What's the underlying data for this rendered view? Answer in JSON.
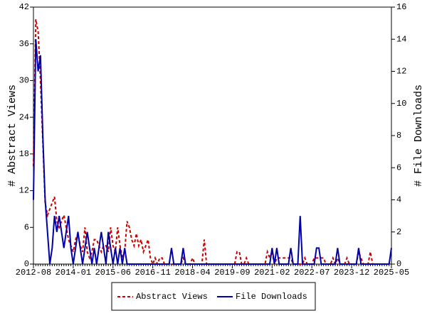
{
  "chart_data": {
    "type": "line",
    "categories": [
      "2012-08",
      null,
      null,
      null,
      null,
      null,
      null,
      null,
      null,
      null,
      null,
      null,
      null,
      null,
      null,
      null,
      null,
      "2014-01",
      null,
      null,
      null,
      null,
      null,
      null,
      null,
      null,
      null,
      null,
      null,
      null,
      null,
      null,
      null,
      null,
      "2015-06",
      null,
      null,
      null,
      null,
      null,
      null,
      null,
      null,
      null,
      null,
      null,
      null,
      null,
      null,
      null,
      null,
      "2016-11",
      null,
      null,
      null,
      null,
      null,
      null,
      null,
      null,
      null,
      null,
      null,
      null,
      null,
      null,
      null,
      null,
      "2018-04",
      null,
      null,
      null,
      null,
      null,
      null,
      null,
      null,
      null,
      null,
      null,
      null,
      null,
      null,
      null,
      null,
      "2019-09",
      null,
      null,
      null,
      null,
      null,
      null,
      null,
      null,
      null,
      null,
      null,
      null,
      null,
      null,
      null,
      null,
      "2021-02",
      null,
      null,
      null,
      null,
      null,
      null,
      null,
      null,
      null,
      null,
      null,
      null,
      null,
      null,
      null,
      null,
      "2022-07",
      null,
      null,
      null,
      null,
      null,
      null,
      null,
      null,
      null,
      null,
      null,
      null,
      null,
      null,
      null,
      null,
      "2023-12",
      null,
      null,
      null,
      null,
      null,
      null,
      null,
      null,
      null,
      null,
      null,
      null,
      null,
      null,
      null,
      null,
      "2025-05"
    ],
    "series": [
      {
        "name": "Abstract Views",
        "color": "#cc0000",
        "line_style": "dashed",
        "axis": "y",
        "values": [
          16,
          40,
          38,
          30,
          20,
          10,
          8,
          9,
          10,
          11,
          7,
          6,
          7,
          8,
          6,
          4,
          3,
          2,
          4,
          5,
          3,
          2,
          6,
          2,
          1,
          2,
          4,
          4,
          3,
          2,
          3,
          3,
          2,
          6,
          3,
          2,
          6,
          3,
          1,
          2,
          7,
          6,
          4,
          3,
          5,
          3,
          4,
          2,
          3,
          4,
          1,
          0,
          1,
          0,
          1,
          1,
          0,
          0,
          0,
          0,
          0,
          0,
          0,
          0,
          1,
          0,
          0,
          0,
          1,
          0,
          0,
          0,
          0,
          4,
          0,
          0,
          0,
          0,
          0,
          0,
          0,
          0,
          0,
          0,
          0,
          0,
          0,
          2,
          2,
          0,
          0,
          1,
          0,
          0,
          0,
          0,
          0,
          0,
          0,
          0,
          2,
          1,
          2,
          0,
          1,
          1,
          1,
          1,
          1,
          1,
          1,
          0,
          0,
          0,
          0,
          0,
          1,
          0,
          0,
          0,
          1,
          1,
          1,
          1,
          1,
          0,
          0,
          0,
          1,
          0,
          1,
          0,
          0,
          0,
          1,
          0,
          0,
          0,
          0,
          2,
          1,
          0,
          0,
          0,
          2,
          0,
          0,
          0,
          0,
          0,
          0,
          0,
          0,
          0
        ]
      },
      {
        "name": "File Downloads",
        "color": "#0000aa",
        "line_style": "solid",
        "axis": "y2",
        "values": [
          4,
          14,
          12,
          13,
          8,
          4,
          2,
          0,
          1,
          3,
          2,
          3,
          2,
          1,
          2,
          3,
          1,
          0,
          1,
          2,
          1,
          0,
          1,
          2,
          1,
          0,
          1,
          0,
          1,
          2,
          1,
          0,
          2,
          1,
          0,
          1,
          0,
          1,
          0,
          1,
          0,
          0,
          0,
          0,
          0,
          0,
          0,
          0,
          0,
          0,
          0,
          0,
          0,
          0,
          0,
          0,
          0,
          0,
          0,
          1,
          0,
          0,
          0,
          0,
          1,
          0,
          0,
          0,
          0,
          0,
          0,
          0,
          0,
          0,
          0,
          0,
          0,
          0,
          0,
          0,
          0,
          0,
          0,
          0,
          0,
          0,
          0,
          0,
          0,
          0,
          0,
          0,
          0,
          0,
          0,
          0,
          0,
          0,
          0,
          0,
          0,
          0,
          1,
          0,
          1,
          0,
          0,
          0,
          0,
          0,
          1,
          0,
          0,
          0,
          3,
          0,
          0,
          0,
          0,
          0,
          0,
          1,
          1,
          0,
          0,
          0,
          0,
          0,
          0,
          0,
          1,
          0,
          0,
          0,
          0,
          0,
          0,
          0,
          0,
          1,
          0,
          0,
          0,
          0,
          0,
          0,
          0,
          0,
          0,
          0,
          0,
          0,
          0,
          1
        ]
      }
    ],
    "ylabel": "# Abstract Views",
    "y2label": "# File Downloads",
    "ylim": [
      0,
      42
    ],
    "yticks": [
      0,
      6,
      12,
      18,
      24,
      30,
      36,
      42
    ],
    "y2lim": [
      0,
      16
    ],
    "y2ticks": [
      0,
      2,
      4,
      6,
      8,
      10,
      12,
      14,
      16
    ],
    "legend": "bottom"
  }
}
